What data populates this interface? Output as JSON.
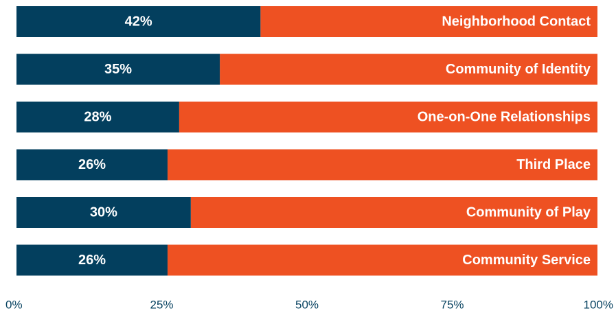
{
  "chart_data": {
    "type": "bar",
    "orientation": "horizontal",
    "stacked": true,
    "categories": [
      "Neighborhood Contact",
      "Community of Identity",
      "One-on-One Relationships",
      "Third Place",
      "Community of Play",
      "Community Service"
    ],
    "values": [
      42,
      35,
      28,
      26,
      30,
      26
    ],
    "value_labels": [
      "42%",
      "35%",
      "28%",
      "26%",
      "30%",
      "26%"
    ],
    "xlim": [
      0,
      100
    ],
    "x_ticks": [
      0,
      25,
      50,
      75,
      100
    ],
    "x_tick_labels": [
      "0%",
      "25%",
      "50%",
      "75%",
      "100%"
    ],
    "grid": false,
    "colors": {
      "value": "#033f5e",
      "remainder": "#ee5122",
      "bar_text": "#ffffff",
      "tick_text": "#033f5e"
    }
  }
}
